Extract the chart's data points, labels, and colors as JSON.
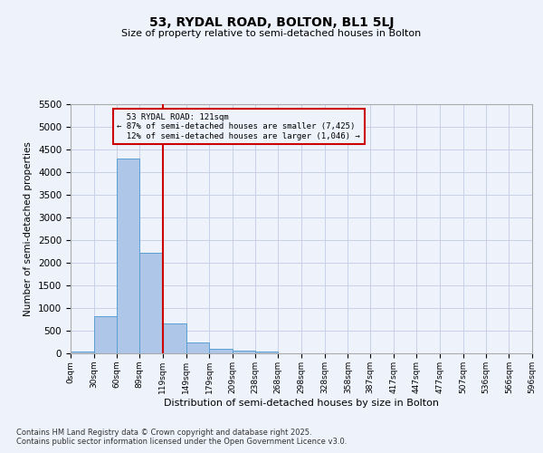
{
  "title": "53, RYDAL ROAD, BOLTON, BL1 5LJ",
  "subtitle": "Size of property relative to semi-detached houses in Bolton",
  "xlabel": "Distribution of semi-detached houses by size in Bolton",
  "ylabel": "Number of semi-detached properties",
  "footnote1": "Contains HM Land Registry data © Crown copyright and database right 2025.",
  "footnote2": "Contains public sector information licensed under the Open Government Licence v3.0.",
  "bin_labels": [
    "0sqm",
    "30sqm",
    "60sqm",
    "89sqm",
    "119sqm",
    "149sqm",
    "179sqm",
    "209sqm",
    "238sqm",
    "268sqm",
    "298sqm",
    "328sqm",
    "358sqm",
    "387sqm",
    "417sqm",
    "447sqm",
    "477sqm",
    "507sqm",
    "536sqm",
    "566sqm",
    "596sqm"
  ],
  "bin_edges": [
    0,
    30,
    60,
    89,
    119,
    149,
    179,
    209,
    238,
    268,
    298,
    328,
    358,
    387,
    417,
    447,
    477,
    507,
    536,
    566,
    596
  ],
  "bar_heights": [
    50,
    830,
    4300,
    2230,
    670,
    245,
    110,
    60,
    50,
    0,
    0,
    0,
    0,
    0,
    0,
    0,
    0,
    0,
    0,
    0
  ],
  "bar_color": "#aec6e8",
  "bar_edge_color": "#5a9fd4",
  "ylim": [
    0,
    5500
  ],
  "yticks": [
    0,
    500,
    1000,
    1500,
    2000,
    2500,
    3000,
    3500,
    4000,
    4500,
    5000,
    5500
  ],
  "property_line_x": 119,
  "property_label": "53 RYDAL ROAD: 121sqm",
  "pct_smaller": "87% of semi-detached houses are smaller (7,425)",
  "pct_larger": "12% of semi-detached houses are larger (1,046)",
  "annotation_box_color": "#cc0000",
  "vline_color": "#cc0000",
  "background_color": "#eef2fb",
  "grid_color": "#c8d0e8"
}
